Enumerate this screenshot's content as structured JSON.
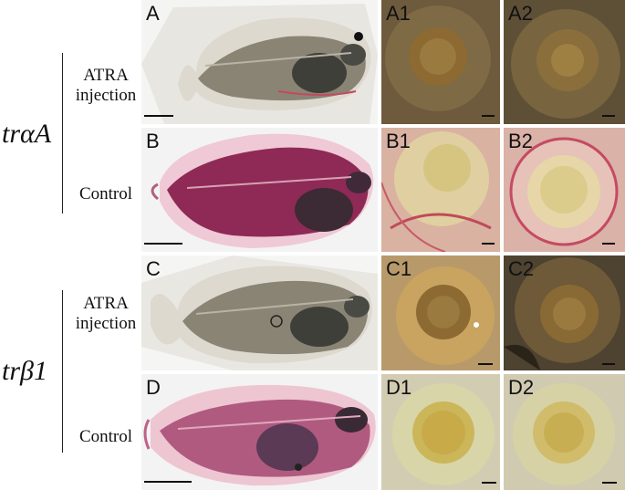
{
  "genes": {
    "top": "trαA",
    "bottom": "trβ1"
  },
  "conditions": {
    "top_treatment": "ATRA\ninjection",
    "top_control": "Control",
    "bottom_treatment": "ATRA\ninjection",
    "bottom_control": "Control"
  },
  "rows": [
    {
      "label": "A",
      "eye1": "A1",
      "eye2": "A2",
      "stain": "unstained"
    },
    {
      "label": "B",
      "eye1": "B1",
      "eye2": "B2",
      "stain": "red"
    },
    {
      "label": "C",
      "eye1": "C1",
      "eye2": "C2",
      "stain": "unstained"
    },
    {
      "label": "D",
      "eye1": "D1",
      "eye2": "D2",
      "stain": "red"
    }
  ],
  "colors": {
    "unstained_body": "#8a8475",
    "unstained_fin": "#e4e0d6",
    "stained_body": "#8e2a55",
    "stained_fin": "#e79bb5",
    "eye_unstained": "#8c6a32",
    "eye_stained": "#d5c581"
  }
}
